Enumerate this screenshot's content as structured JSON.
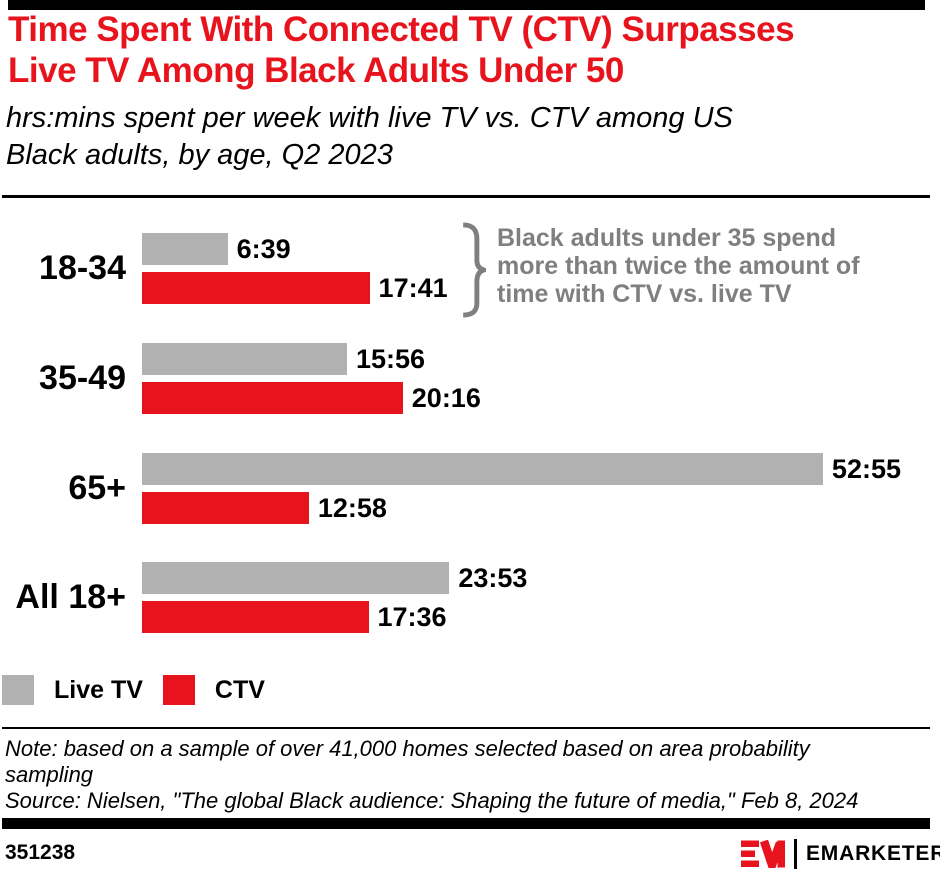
{
  "header": {
    "title_lines": [
      "Time Spent With Connected TV (CTV) Surpasses",
      "Live TV Among Black Adults Under 50"
    ],
    "subtitle_lines": [
      "hrs:mins spent per week with live TV vs. CTV among US",
      "Black adults, by age, Q2 2023"
    ]
  },
  "chart_data": {
    "type": "bar",
    "orientation": "horizontal",
    "unit": "hrs:mins spent per week",
    "categories": [
      "18-34",
      "35-49",
      "65+",
      "All 18+"
    ],
    "series": [
      {
        "name": "Live TV",
        "color": "#b1b1b1",
        "values": [
          "6:39",
          "15:56",
          "52:55",
          "23:53"
        ],
        "hours": [
          6.65,
          15.93,
          52.92,
          23.88
        ]
      },
      {
        "name": "CTV",
        "color": "#e8141d",
        "values": [
          "17:41",
          "20:16",
          "12:58",
          "17:36"
        ],
        "hours": [
          17.68,
          20.27,
          12.97,
          17.6
        ]
      }
    ],
    "axis": "none",
    "value_labels": "end-of-bar",
    "annotation": {
      "lines": [
        "Black adults under 35 spend",
        "more than twice the amount of",
        "time with CTV vs. live TV"
      ],
      "color": "#7f7f7f",
      "attached_to": "18-34"
    }
  },
  "legend": {
    "items": [
      {
        "label": "Live TV",
        "color": "#b1b1b1"
      },
      {
        "label": "CTV",
        "color": "#e8141d"
      }
    ]
  },
  "footnote": {
    "note_lines": [
      "Note: based on a sample of over 41,000 homes selected based on area probability",
      "sampling"
    ],
    "source": "Source: Nielsen, \"The global Black audience: Shaping the future of media,\" Feb 8, 2024"
  },
  "footer": {
    "chart_id": "351238",
    "brand": "EMARKETER"
  },
  "colors": {
    "accent_red": "#e8141d",
    "bar_gray": "#b1b1b1",
    "annotation_gray": "#7f7f7f",
    "text_black": "#000000"
  }
}
